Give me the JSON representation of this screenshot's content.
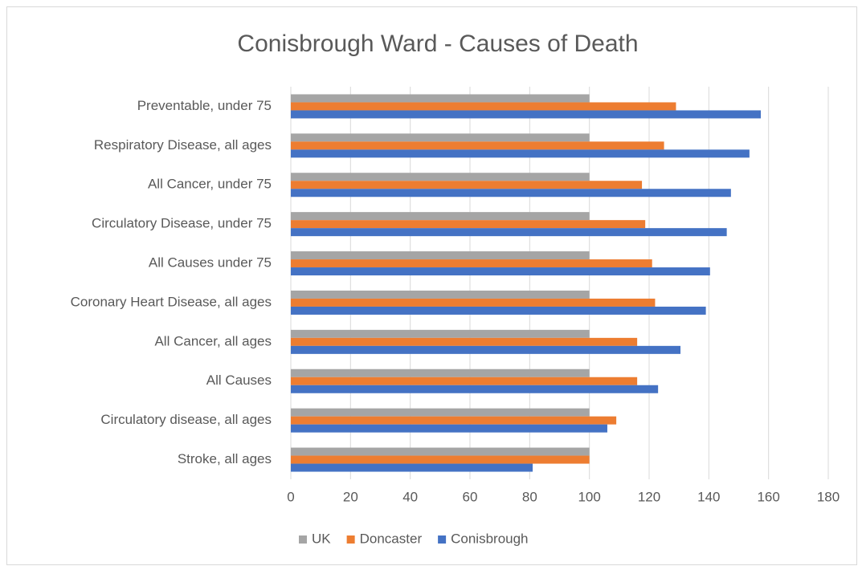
{
  "chart_data": {
    "type": "hbar",
    "title": "Conisbrough Ward - Causes of Death",
    "categories": [
      "Preventable, under 75",
      "Respiratory Disease, all ages",
      "All Cancer, under 75",
      "Circulatory Disease, under 75",
      "All Causes under 75",
      "Coronary Heart Disease, all ages",
      "All Cancer, all ages",
      "All Causes",
      "Circulatory disease, all ages",
      "Stroke, all ages"
    ],
    "series": [
      {
        "name": "UK",
        "color": "#a5a5a5",
        "values": [
          100,
          100,
          100,
          100,
          100,
          100,
          100,
          100,
          100,
          100
        ]
      },
      {
        "name": "Doncaster",
        "color": "#ed7d31",
        "values": [
          129,
          125,
          117.6,
          118.7,
          121,
          122,
          116,
          116,
          109,
          100
        ]
      },
      {
        "name": "Conisbrough",
        "color": "#4472c4",
        "values": [
          157.4,
          153.6,
          147.4,
          146,
          140.4,
          139,
          130.5,
          123,
          106,
          81
        ]
      }
    ],
    "xlim": [
      0,
      180
    ],
    "xticks": [
      0,
      20,
      40,
      60,
      80,
      100,
      120,
      140,
      160,
      180
    ],
    "grid": true,
    "legend": "bottom"
  }
}
